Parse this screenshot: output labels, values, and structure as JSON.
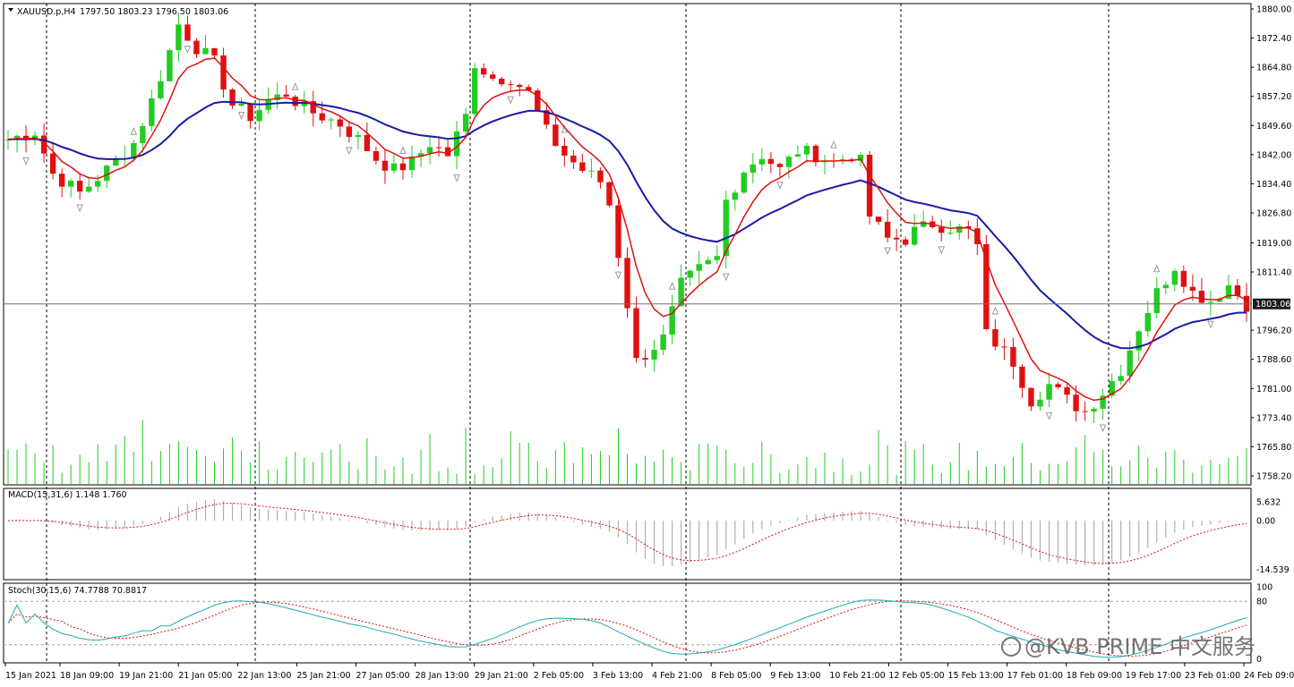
{
  "header": {
    "symbol": "XAUUSD.p,H4",
    "ohlc": "1797.50 1803.23 1796.50 1803.06",
    "macd_label": "MACD(15,31,6) 1.148 1.760",
    "stoch_label": "Stoch(30,15,6) 74.7788 70.8817"
  },
  "current_price": "1803.06",
  "watermark": "@KVB PRIME 中文服务",
  "colors": {
    "bull": "#22cc22",
    "bear": "#e01010",
    "fast_ma": "#e01010",
    "slow_ma": "#1a1aa8",
    "volume": "#22cc22",
    "macd_hist": "#b0b0b0",
    "macd_signal": "#e01010",
    "stoch_main": "#22aab0",
    "stoch_signal": "#e01010",
    "fractal": "#9a9a9a"
  },
  "chart_data": {
    "type": "candlestick",
    "timeframe": "H4",
    "price_ticks": [
      "1880.00",
      "1872.40",
      "1864.80",
      "1857.20",
      "1849.60",
      "1842.00",
      "1834.40",
      "1826.80",
      "1819.00",
      "1811.40",
      "1796.20",
      "1788.60",
      "1781.00",
      "1773.40",
      "1765.80",
      "1758.20"
    ],
    "price_range": [
      1758.2,
      1880.0
    ],
    "time_ticks": [
      "15 Jan 2021",
      "18 Jan 09:00",
      "19 Jan 21:00",
      "21 Jan 05:00",
      "22 Jan 13:00",
      "25 Jan 21:00",
      "27 Jan 05:00",
      "28 Jan 13:00",
      "29 Jan 21:00",
      "2 Feb 05:00",
      "3 Feb 13:00",
      "4 Feb 21:00",
      "8 Feb 05:00",
      "9 Feb 13:00",
      "10 Feb 21:00",
      "12 Feb 05:00",
      "15 Feb 13:00",
      "17 Feb 01:00",
      "18 Feb 09:00",
      "19 Feb 17:00",
      "23 Feb 01:00",
      "24 Feb 09:00"
    ],
    "close_path": [
      [
        0,
        1846
      ],
      [
        3,
        1848
      ],
      [
        5,
        1837
      ],
      [
        8,
        1832
      ],
      [
        11,
        1838
      ],
      [
        14,
        1845
      ],
      [
        16,
        1856
      ],
      [
        18,
        1869
      ],
      [
        19,
        1876
      ],
      [
        21,
        1870
      ],
      [
        23,
        1866
      ],
      [
        25,
        1855
      ],
      [
        27,
        1852
      ],
      [
        29,
        1856
      ],
      [
        31,
        1858
      ],
      [
        33,
        1854
      ],
      [
        35,
        1852
      ],
      [
        37,
        1850
      ],
      [
        39,
        1846
      ],
      [
        41,
        1841
      ],
      [
        43,
        1838
      ],
      [
        45,
        1840
      ],
      [
        47,
        1845
      ],
      [
        49,
        1842
      ],
      [
        51,
        1852
      ],
      [
        52,
        1866
      ],
      [
        54,
        1862
      ],
      [
        56,
        1862
      ],
      [
        58,
        1858
      ],
      [
        60,
        1848
      ],
      [
        62,
        1842
      ],
      [
        64,
        1838
      ],
      [
        66,
        1835
      ],
      [
        67,
        1829
      ],
      [
        69,
        1803
      ],
      [
        70,
        1788
      ],
      [
        71,
        1790
      ],
      [
        73,
        1794
      ],
      [
        75,
        1808
      ],
      [
        77,
        1812
      ],
      [
        79,
        1815
      ],
      [
        80,
        1830
      ],
      [
        82,
        1838
      ],
      [
        84,
        1842
      ],
      [
        86,
        1838
      ],
      [
        88,
        1843
      ],
      [
        90,
        1842
      ],
      [
        92,
        1840
      ],
      [
        94,
        1842
      ],
      [
        95,
        1840
      ],
      [
        96,
        1826
      ],
      [
        98,
        1820
      ],
      [
        100,
        1820
      ],
      [
        101,
        1822
      ],
      [
        103,
        1824
      ],
      [
        105,
        1823
      ],
      [
        107,
        1822
      ],
      [
        108,
        1818
      ],
      [
        109,
        1795
      ],
      [
        110,
        1793
      ],
      [
        112,
        1788
      ],
      [
        114,
        1778
      ],
      [
        116,
        1782
      ],
      [
        118,
        1778
      ],
      [
        120,
        1775
      ],
      [
        122,
        1780
      ],
      [
        124,
        1786
      ],
      [
        126,
        1797
      ],
      [
        128,
        1806
      ],
      [
        130,
        1813
      ],
      [
        132,
        1806
      ],
      [
        134,
        1804
      ],
      [
        136,
        1808
      ],
      [
        138,
        1803
      ]
    ],
    "macd": {
      "ticks": [
        "5.632",
        "0.00",
        "-14.539"
      ],
      "range": [
        -16.0,
        8.0
      ]
    },
    "stochastic": {
      "levels": [
        80,
        20
      ],
      "ticks": [
        "100",
        "80",
        "0"
      ],
      "range": [
        0,
        100
      ]
    }
  }
}
